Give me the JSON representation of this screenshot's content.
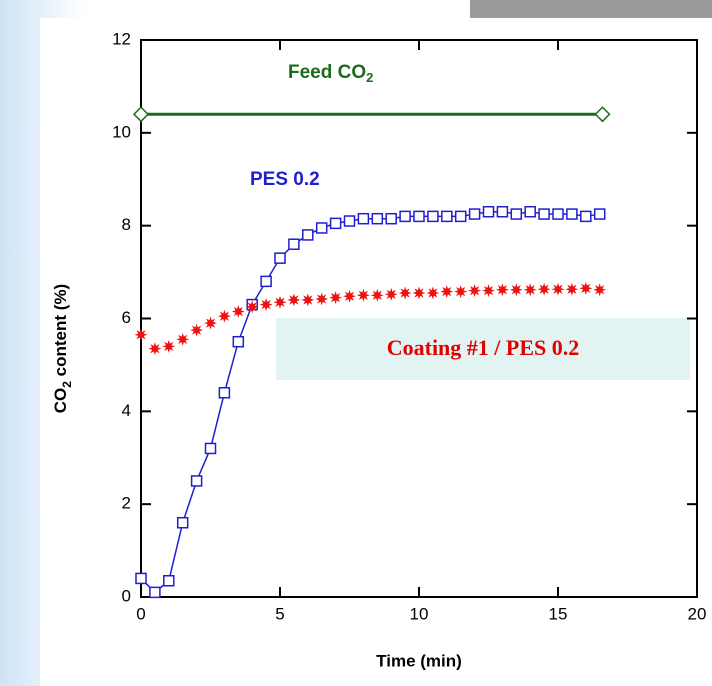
{
  "chart_data": {
    "type": "scatter",
    "x_label": "Time (min)",
    "y_label_parts": [
      "CO",
      "2",
      " content (%)"
    ],
    "xlim": [
      0,
      20
    ],
    "xticks": [
      0,
      5,
      10,
      15,
      20
    ],
    "ylim": [
      0,
      12
    ],
    "yticks": [
      0,
      2,
      4,
      6,
      8,
      10,
      12
    ],
    "annotations": [
      {
        "text": "Feed CO",
        "sub": "2",
        "color": "#1b6b1b"
      },
      {
        "text": "PES 0.2",
        "color": "#1f1fd0"
      },
      {
        "text": "Coating #1 / PES 0.2",
        "color": "#e00000"
      }
    ],
    "series": [
      {
        "color": "#1b6b1b",
        "marker": "diamond",
        "line": true,
        "x": [
          0,
          16.6
        ],
        "values": [
          10.4,
          10.4
        ]
      },
      {
        "color": "#1f1fd0",
        "marker": "square",
        "line": true,
        "x": [
          0,
          0.5,
          1,
          1.5,
          2,
          2.5,
          3,
          3.5,
          4,
          4.5,
          5,
          5.5,
          6,
          6.5,
          7,
          7.5,
          8,
          8.5,
          9,
          9.5,
          10,
          10.5,
          11,
          11.5,
          12,
          12.5,
          13,
          13.5,
          14,
          14.5,
          15,
          15.5,
          16,
          16.5
        ],
        "values": [
          0.4,
          0.1,
          0.35,
          1.6,
          2.5,
          3.2,
          4.4,
          5.5,
          6.3,
          6.8,
          7.3,
          7.6,
          7.8,
          7.95,
          8.05,
          8.1,
          8.15,
          8.15,
          8.15,
          8.2,
          8.2,
          8.2,
          8.2,
          8.2,
          8.25,
          8.3,
          8.3,
          8.25,
          8.3,
          8.25,
          8.25,
          8.25,
          8.2,
          8.25
        ]
      },
      {
        "color": "#ee1111",
        "marker": "star",
        "line": false,
        "x": [
          0,
          0.5,
          1,
          1.5,
          2,
          2.5,
          3,
          3.5,
          4,
          4.5,
          5,
          5.5,
          6,
          6.5,
          7,
          7.5,
          8,
          8.5,
          9,
          9.5,
          10,
          10.5,
          11,
          11.5,
          12,
          12.5,
          13,
          13.5,
          14,
          14.5,
          15,
          15.5,
          16,
          16.5
        ],
        "values": [
          5.65,
          5.35,
          5.4,
          5.55,
          5.75,
          5.9,
          6.05,
          6.15,
          6.25,
          6.3,
          6.35,
          6.4,
          6.4,
          6.42,
          6.45,
          6.48,
          6.5,
          6.5,
          6.52,
          6.55,
          6.55,
          6.55,
          6.58,
          6.58,
          6.6,
          6.6,
          6.62,
          6.62,
          6.62,
          6.63,
          6.63,
          6.63,
          6.65,
          6.62
        ]
      }
    ]
  }
}
